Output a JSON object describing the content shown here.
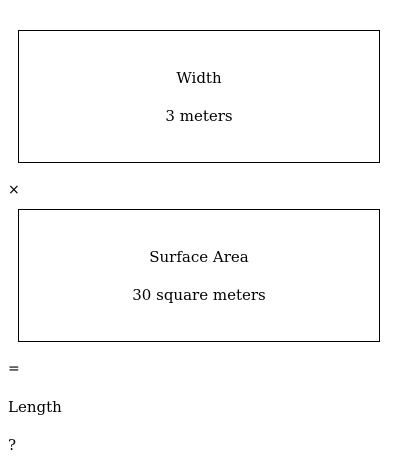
{
  "box_width": {
    "title": "Width",
    "value": "3 meters"
  },
  "operator_times": "×",
  "box_area": {
    "title": "Surface Area",
    "value": "30 square meters"
  },
  "operator_equals": "=",
  "result": {
    "label": "Length",
    "value": "?"
  }
}
